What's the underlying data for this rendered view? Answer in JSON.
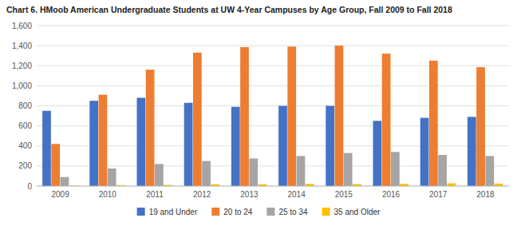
{
  "chart_data": {
    "type": "bar",
    "title": "Chart 6. HMoob American Undergraduate Students at UW 4-Year Campuses by Age Group, Fall 2009 to Fall 2018",
    "categories": [
      "2009",
      "2010",
      "2011",
      "2012",
      "2013",
      "2014",
      "2015",
      "2016",
      "2017",
      "2018"
    ],
    "series": [
      {
        "name": "19 and Under",
        "color": "#4472C4",
        "values": [
          750,
          850,
          880,
          830,
          790,
          800,
          800,
          650,
          680,
          690
        ]
      },
      {
        "name": "20 to 24",
        "color": "#ED7D31",
        "values": [
          420,
          910,
          1160,
          1330,
          1385,
          1390,
          1400,
          1320,
          1250,
          1185
        ]
      },
      {
        "name": "25 to 34",
        "color": "#A5A5A5",
        "values": [
          90,
          175,
          220,
          250,
          275,
          300,
          330,
          340,
          310,
          300
        ]
      },
      {
        "name": "35 and Older",
        "color": "#FFC000",
        "values": [
          5,
          10,
          12,
          18,
          18,
          22,
          20,
          22,
          28,
          25
        ]
      }
    ],
    "ylim": [
      0,
      1600
    ],
    "yticks": [
      0,
      200,
      400,
      600,
      800,
      {
        "value": 1000,
        "label": "1,000"
      },
      {
        "value": 1200,
        "label": "1,200"
      },
      {
        "value": 1400,
        "label": "1,400"
      },
      {
        "value": 1600,
        "label": "1,600"
      }
    ],
    "grid": true,
    "legend": "bottom"
  }
}
